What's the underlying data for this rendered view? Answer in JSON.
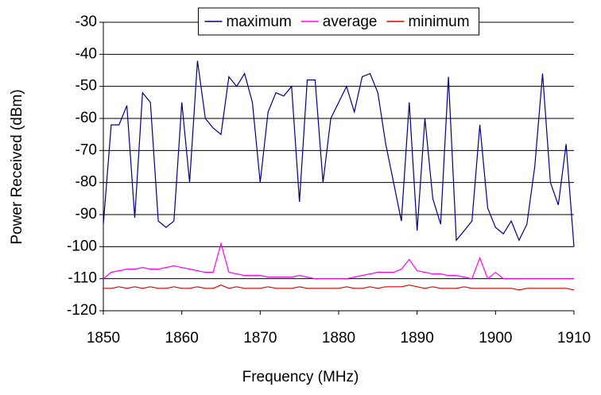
{
  "chart_data": {
    "type": "line",
    "x_label": "Frequency (MHz)",
    "y_label": "Power Received (dBm)",
    "x": [
      1850,
      1851,
      1852,
      1853,
      1854,
      1855,
      1856,
      1857,
      1858,
      1859,
      1860,
      1861,
      1862,
      1863,
      1864,
      1865,
      1866,
      1867,
      1868,
      1869,
      1870,
      1871,
      1872,
      1873,
      1874,
      1875,
      1876,
      1877,
      1878,
      1879,
      1880,
      1881,
      1882,
      1883,
      1884,
      1885,
      1886,
      1887,
      1888,
      1889,
      1890,
      1891,
      1892,
      1893,
      1894,
      1895,
      1896,
      1897,
      1898,
      1899,
      1900,
      1901,
      1902,
      1903,
      1904,
      1905,
      1906,
      1907,
      1908,
      1909,
      1910
    ],
    "series": [
      {
        "name": "maximum",
        "color": "#000080",
        "values": [
          -93,
          -62,
          -62,
          -56,
          -91,
          -52,
          -55,
          -92,
          -94,
          -92,
          -55,
          -80,
          -42,
          -60,
          -63,
          -65,
          -47,
          -50,
          -46,
          -55,
          -80,
          -58,
          -52,
          -53,
          -50,
          -86,
          -48,
          -48,
          -80,
          -60,
          -55,
          -50,
          -58,
          -47,
          -46,
          -52,
          -68,
          -80,
          -92,
          -55,
          -95,
          -60,
          -85,
          -93,
          -47,
          -98,
          -95,
          -92,
          -62,
          -88,
          -94,
          -96,
          -92,
          -98,
          -93,
          -75,
          -46,
          -80,
          -87,
          -68,
          -100
        ]
      },
      {
        "name": "average",
        "color": "#ff00ff",
        "values": [
          -110,
          -108,
          -107.5,
          -107,
          -107,
          -106.5,
          -107,
          -107,
          -106.5,
          -106,
          -106.5,
          -107,
          -107.5,
          -108,
          -108,
          -99,
          -108,
          -108.5,
          -109,
          -109,
          -109,
          -109.5,
          -109.5,
          -109.5,
          -109.5,
          -109,
          -109.5,
          -110,
          -110,
          -110,
          -110,
          -110,
          -109.5,
          -109,
          -108.5,
          -108,
          -108,
          -108,
          -107,
          -104,
          -107.5,
          -108,
          -108.5,
          -108.5,
          -109,
          -109,
          -109.5,
          -110,
          -103.5,
          -110,
          -108,
          -110,
          -110,
          -110,
          -110,
          -110,
          -110,
          -110,
          -110,
          -110,
          -110
        ]
      },
      {
        "name": "minimum",
        "color": "#e00000",
        "values": [
          -113,
          -113,
          -112.5,
          -113,
          -112.5,
          -113,
          -112.5,
          -113,
          -113,
          -112.5,
          -113,
          -113,
          -112.5,
          -113,
          -113,
          -112,
          -113,
          -112.5,
          -113,
          -113,
          -113,
          -112.5,
          -113,
          -113,
          -113,
          -112.5,
          -113,
          -113,
          -113,
          -113,
          -113,
          -112.5,
          -113,
          -113,
          -112.5,
          -113,
          -112.5,
          -112.5,
          -112.5,
          -112,
          -112.5,
          -113,
          -112.5,
          -113,
          -113,
          -113,
          -112.5,
          -113,
          -113,
          -113,
          -113,
          -113,
          -113,
          -113.5,
          -113,
          -113,
          -113,
          -113,
          -113,
          -113,
          -113.5
        ]
      }
    ],
    "xlim": [
      1850,
      1910
    ],
    "xticks": [
      1850,
      1860,
      1870,
      1880,
      1890,
      1900,
      1910
    ],
    "ylim": [
      -120,
      -30
    ],
    "yticks": [
      -30,
      -40,
      -50,
      -60,
      -70,
      -80,
      -90,
      -100,
      -110,
      -120
    ],
    "grid": true,
    "legend": "top"
  }
}
